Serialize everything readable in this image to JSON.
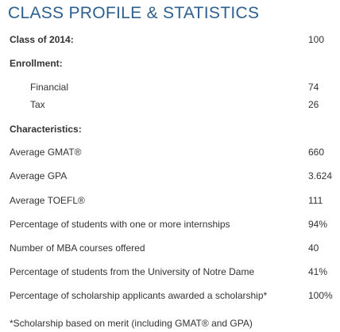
{
  "header": {
    "title": "CLASS PROFILE & STATISTICS"
  },
  "table": {
    "rows": [
      [
        "Class of 2014:",
        "100"
      ],
      [
        "Enrollment:"
      ],
      [
        "Financial",
        "74"
      ],
      [
        "Tax",
        "26"
      ],
      [
        "Characteristics:"
      ],
      [
        "Average GMAT®",
        "660"
      ],
      [
        "Average GPA",
        "3.624"
      ],
      [
        "Average TOEFL®",
        "111"
      ],
      [
        "Percentage of students with one or more internships",
        "94%"
      ],
      [
        "Number of MBA courses offered",
        "40"
      ],
      [
        "Percentage of students from the University of Notre Dame",
        "41%"
      ],
      [
        "Percentage of scholarship applicants awarded a scholarship*",
        "100%"
      ]
    ]
  },
  "footnote": "*Scholarship based on merit (including GMAT® and GPA)"
}
